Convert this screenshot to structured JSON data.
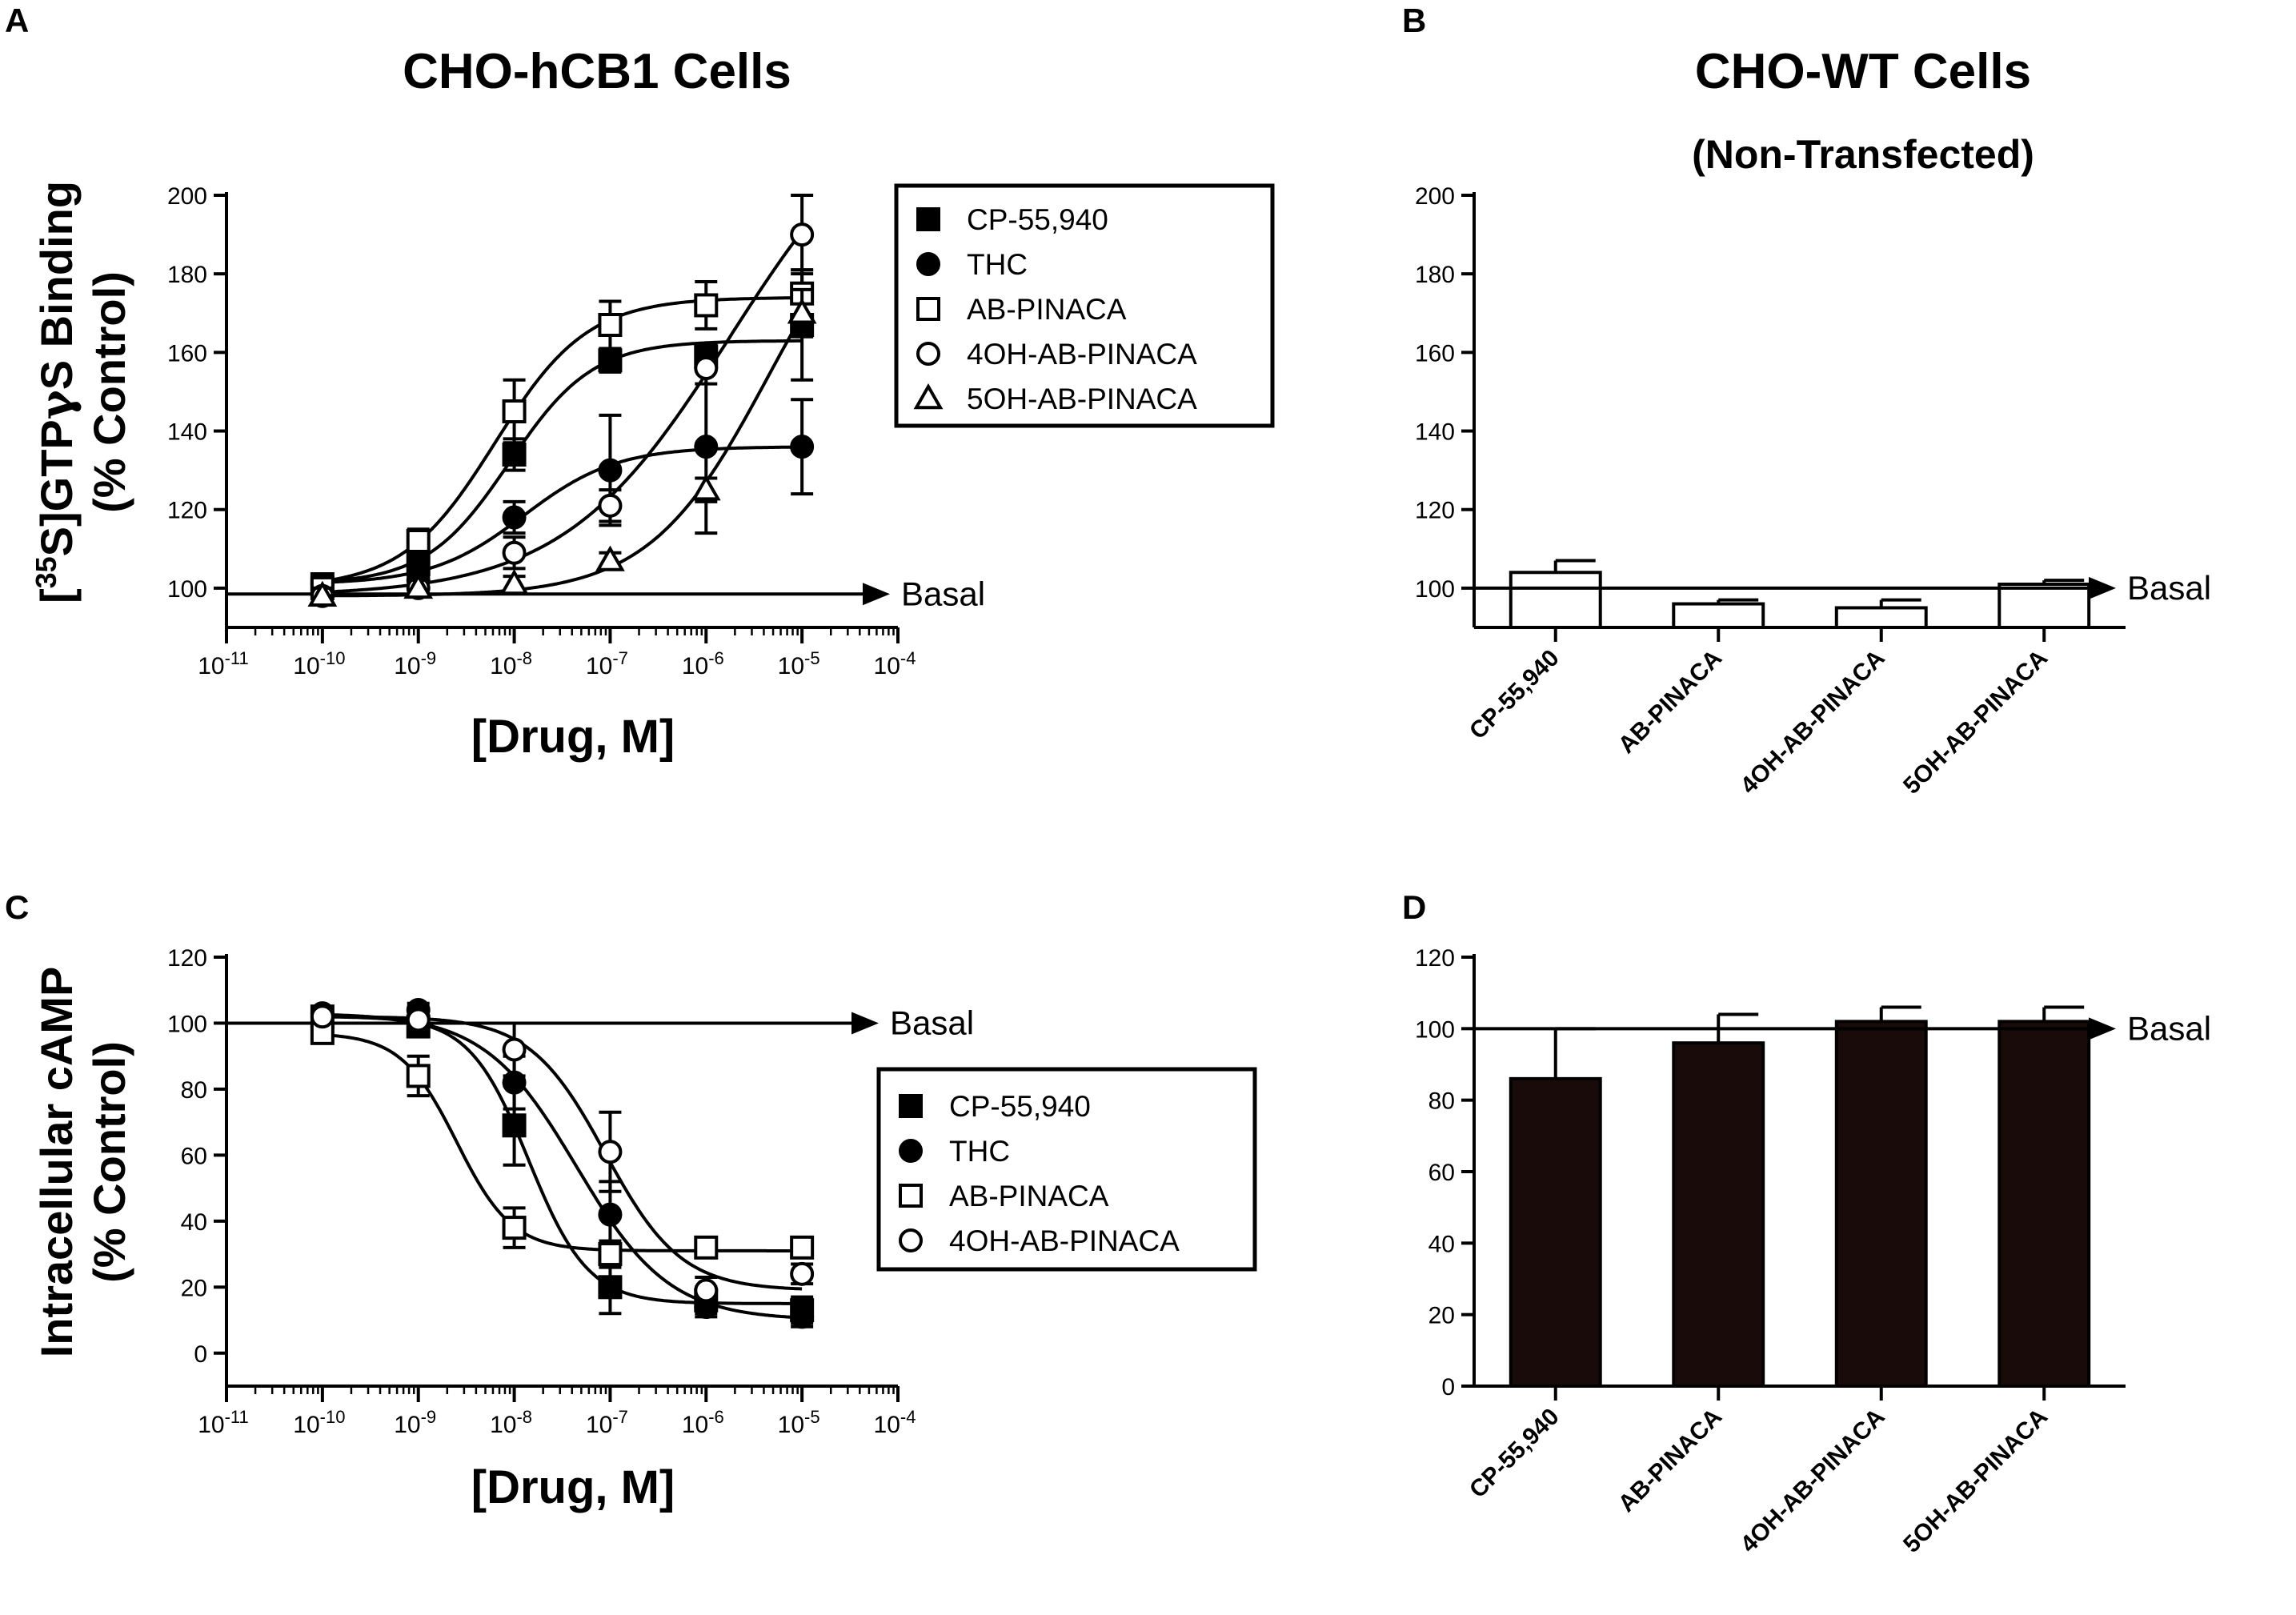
{
  "chart_data": [
    {
      "panel": "A",
      "type": "scatter",
      "title": "CHO-hCB1 Cells",
      "ylabel": "[35S]GTPγS Binding (% Control)",
      "xlabel": "[Drug, M]",
      "x_scale": "log",
      "xlim": [
        1e-11,
        0.0001
      ],
      "ylim": [
        90,
        200
      ],
      "yticks": [
        100,
        120,
        140,
        160,
        180,
        200
      ],
      "xtick_labels": [
        "10-11",
        "10-10",
        "10-9",
        "10-8",
        "10-7",
        "10-6",
        "10-5",
        "10-4"
      ],
      "baseline": {
        "label": "Basal",
        "value": 98.5
      },
      "legend_position": "top-right",
      "series": [
        {
          "name": "CP-55,940",
          "marker": "square-filled",
          "x": [
            1e-10,
            1e-09,
            1e-08,
            1e-07,
            1e-06,
            1e-05
          ],
          "y": [
            101,
            106,
            134,
            158,
            159,
            167
          ],
          "err": [
            2,
            3,
            4,
            3,
            3,
            14
          ]
        },
        {
          "name": "THC",
          "marker": "circle-filled",
          "x": [
            1e-10,
            1e-09,
            1e-08,
            1e-07,
            1e-06,
            1e-05
          ],
          "y": [
            101,
            102,
            118,
            130,
            136,
            136
          ],
          "err": [
            2,
            2,
            4,
            14,
            22,
            12
          ]
        },
        {
          "name": "AB-PINACA",
          "marker": "square-open",
          "x": [
            1e-10,
            1e-09,
            1e-08,
            1e-07,
            1e-06,
            1e-05
          ],
          "y": [
            100,
            112,
            145,
            167,
            172,
            175
          ],
          "err": [
            2,
            3,
            8,
            6,
            6,
            6
          ]
        },
        {
          "name": "4OH-AB-PINACA",
          "marker": "circle-open",
          "x": [
            1e-10,
            1e-09,
            1e-08,
            1e-07,
            1e-06,
            1e-05
          ],
          "y": [
            98,
            100,
            109,
            121,
            156,
            190
          ],
          "err": [
            2,
            2,
            4,
            4,
            4,
            10
          ]
        },
        {
          "name": "5OH-AB-PINACA",
          "marker": "triangle-open",
          "x": [
            1e-10,
            1e-09,
            1e-08,
            1e-07,
            1e-06,
            1e-05
          ],
          "y": [
            98,
            100,
            101,
            107,
            125,
            170
          ],
          "err": [
            2,
            2,
            2,
            2,
            3,
            6
          ]
        }
      ]
    },
    {
      "panel": "B",
      "type": "bar",
      "title": "CHO-WT Cells",
      "subtitle": "(Non-Transfected)",
      "categories": [
        "CP-55,940",
        "AB-PINACA",
        "4OH-AB-PINACA",
        "5OH-AB-PINACA"
      ],
      "values": [
        104,
        96,
        95,
        101
      ],
      "err": [
        3,
        1,
        2,
        1
      ],
      "bar_fill": "#ffffff",
      "ylim": [
        90,
        200
      ],
      "yticks": [
        100,
        120,
        140,
        160,
        180,
        200
      ],
      "baseline": {
        "label": "Basal",
        "value": 100
      }
    },
    {
      "panel": "C",
      "type": "scatter",
      "ylabel": "Intracellular cAMP (% Control)",
      "xlabel": "[Drug, M]",
      "x_scale": "log",
      "xlim": [
        1e-11,
        0.0001
      ],
      "ylim": [
        -10,
        120
      ],
      "yticks": [
        0,
        20,
        40,
        60,
        80,
        100,
        120
      ],
      "xtick_labels": [
        "10-11",
        "10-10",
        "10-9",
        "10-8",
        "10-7",
        "10-6",
        "10-5",
        "10-4"
      ],
      "baseline": {
        "label": "Basal",
        "value": 100
      },
      "legend_position": "right",
      "series": [
        {
          "name": "CP-55,940",
          "marker": "square-filled",
          "x": [
            1e-10,
            1e-09,
            1e-08,
            1e-07,
            1e-06,
            1e-05
          ],
          "y": [
            102,
            99,
            69,
            20,
            16,
            13
          ],
          "err": [
            2,
            3,
            12,
            8,
            4,
            4
          ]
        },
        {
          "name": "THC",
          "marker": "circle-filled",
          "x": [
            1e-10,
            1e-09,
            1e-08,
            1e-07,
            1e-06,
            1e-05
          ],
          "y": [
            103,
            104,
            82,
            42,
            14,
            11
          ],
          "err": [
            2,
            2,
            8,
            10,
            3,
            3
          ]
        },
        {
          "name": "AB-PINACA",
          "marker": "square-open",
          "x": [
            1e-10,
            1e-09,
            1e-08,
            1e-07,
            1e-06,
            1e-05
          ],
          "y": [
            97,
            84,
            38,
            30,
            32,
            32
          ],
          "err": [
            3,
            6,
            6,
            4,
            3,
            3
          ]
        },
        {
          "name": "4OH-AB-PINACA",
          "marker": "circle-open",
          "x": [
            1e-10,
            1e-09,
            1e-08,
            1e-07,
            1e-06,
            1e-05
          ],
          "y": [
            102,
            101,
            92,
            61,
            19,
            24
          ],
          "err": [
            2,
            2,
            8,
            12,
            4,
            3
          ]
        }
      ]
    },
    {
      "panel": "D",
      "type": "bar",
      "categories": [
        "CP-55,940",
        "AB-PINACA",
        "4OH-AB-PINACA",
        "5OH-AB-PINACA"
      ],
      "values": [
        86,
        96,
        102,
        102
      ],
      "err": [
        14,
        8,
        4,
        4
      ],
      "bar_fill": "#1a0b0b",
      "ylim": [
        0,
        120
      ],
      "yticks": [
        0,
        20,
        40,
        60,
        80,
        100,
        120
      ],
      "baseline": {
        "label": "Basal",
        "value": 100
      }
    }
  ]
}
